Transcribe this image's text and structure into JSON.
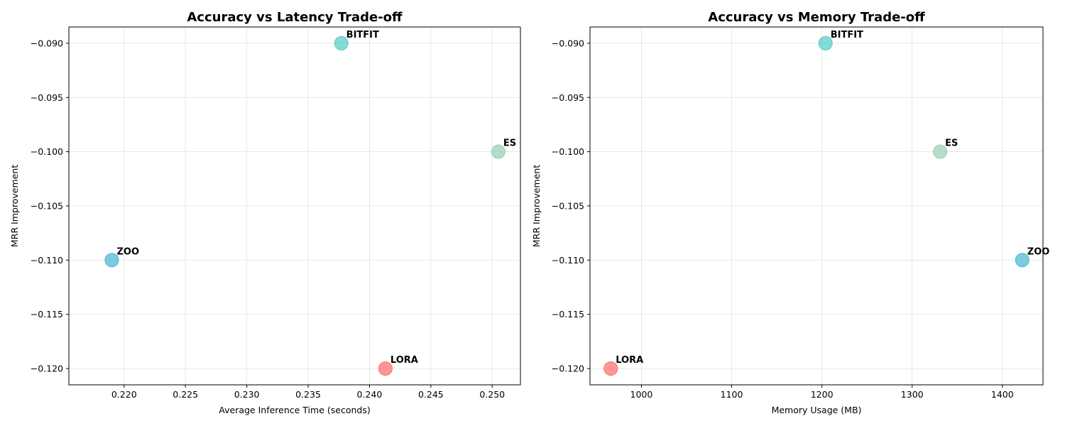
{
  "chart_data": [
    {
      "type": "scatter",
      "title": "Accuracy vs Latency Trade-off",
      "xlabel": "Average Inference Time (seconds)",
      "ylabel": "MRR Improvement",
      "xlim": [
        0.2155,
        0.2523
      ],
      "ylim": [
        -0.1215,
        -0.0885
      ],
      "xticks": [
        {
          "value": 0.22,
          "label": "0.220"
        },
        {
          "value": 0.225,
          "label": "0.225"
        },
        {
          "value": 0.23,
          "label": "0.230"
        },
        {
          "value": 0.235,
          "label": "0.235"
        },
        {
          "value": 0.24,
          "label": "0.240"
        },
        {
          "value": 0.245,
          "label": "0.245"
        },
        {
          "value": 0.25,
          "label": "0.250"
        }
      ],
      "yticks": [
        {
          "value": -0.09,
          "label": "−0.090"
        },
        {
          "value": -0.095,
          "label": "−0.095"
        },
        {
          "value": -0.1,
          "label": "−0.100"
        },
        {
          "value": -0.105,
          "label": "−0.105"
        },
        {
          "value": -0.11,
          "label": "−0.110"
        },
        {
          "value": -0.115,
          "label": "−0.115"
        },
        {
          "value": -0.12,
          "label": "−0.120"
        }
      ],
      "grid": true,
      "points": [
        {
          "label": "BITFIT",
          "x": 0.2377,
          "y": -0.09,
          "color": "#4ECDC4"
        },
        {
          "label": "ES",
          "x": 0.2505,
          "y": -0.1,
          "color": "#96CEB4"
        },
        {
          "label": "ZOO",
          "x": 0.219,
          "y": -0.11,
          "color": "#45B7D1"
        },
        {
          "label": "LORA",
          "x": 0.2413,
          "y": -0.12,
          "color": "#FF6B6B"
        }
      ]
    },
    {
      "type": "scatter",
      "title": "Accuracy vs Memory Trade-off",
      "xlabel": "Memory Usage (MB)",
      "ylabel": "MRR Improvement",
      "xlim": [
        943,
        1445
      ],
      "ylim": [
        -0.1215,
        -0.0885
      ],
      "xticks": [
        {
          "value": 1000,
          "label": "1000"
        },
        {
          "value": 1100,
          "label": "1100"
        },
        {
          "value": 1200,
          "label": "1200"
        },
        {
          "value": 1300,
          "label": "1300"
        },
        {
          "value": 1400,
          "label": "1400"
        }
      ],
      "yticks": [
        {
          "value": -0.09,
          "label": "−0.090"
        },
        {
          "value": -0.095,
          "label": "−0.095"
        },
        {
          "value": -0.1,
          "label": "−0.100"
        },
        {
          "value": -0.105,
          "label": "−0.105"
        },
        {
          "value": -0.11,
          "label": "−0.110"
        },
        {
          "value": -0.115,
          "label": "−0.115"
        },
        {
          "value": -0.12,
          "label": "−0.120"
        }
      ],
      "grid": true,
      "points": [
        {
          "label": "BITFIT",
          "x": 1204,
          "y": -0.09,
          "color": "#4ECDC4"
        },
        {
          "label": "ES",
          "x": 1331,
          "y": -0.1,
          "color": "#96CEB4"
        },
        {
          "label": "ZOO",
          "x": 1422,
          "y": -0.11,
          "color": "#45B7D1"
        },
        {
          "label": "LORA",
          "x": 966,
          "y": -0.12,
          "color": "#FF6B6B"
        }
      ]
    }
  ]
}
